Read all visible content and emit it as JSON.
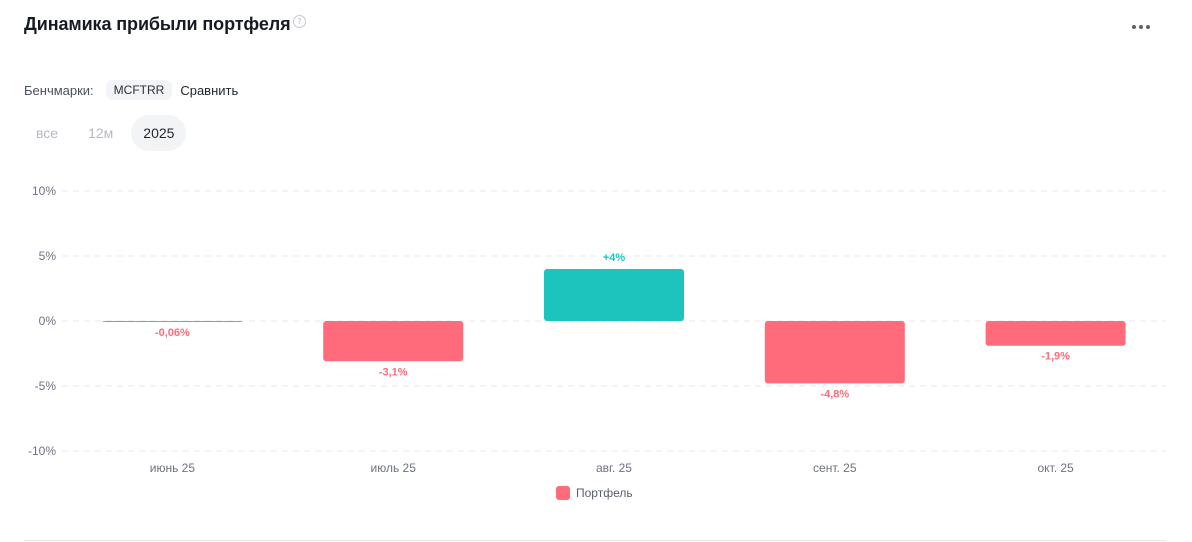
{
  "header": {
    "title": "Динамика прибыли портфеля",
    "help_icon": "question-circle-icon",
    "more_icon": "more-horizontal-icon"
  },
  "benchmarks": {
    "label": "Бенчмарки:",
    "chip": "MCFTRR",
    "compare": "Сравнить"
  },
  "period_tabs": [
    {
      "label": "все",
      "active": false
    },
    {
      "label": "12м",
      "active": false
    },
    {
      "label": "2025",
      "active": true
    }
  ],
  "colors": {
    "positive": "#1dc4bd",
    "negative": "#ff6b7a",
    "grid": "#e6e8ec",
    "axis_text": "#6c7280"
  },
  "chart_data": {
    "type": "bar",
    "categories": [
      "июнь 25",
      "июль 25",
      "авг. 25",
      "сент. 25",
      "окт. 25"
    ],
    "series": [
      {
        "name": "Портфель",
        "values": [
          -0.06,
          -3.1,
          4.0,
          -4.8,
          -1.9
        ],
        "labels": [
          "-0,06%",
          "-3,1%",
          "+4%",
          "-4,8%",
          "-1,9%"
        ]
      }
    ],
    "ylim": [
      -10,
      10
    ],
    "yticks": [
      10,
      5,
      0,
      -5,
      -10
    ],
    "ytick_labels": [
      "10%",
      "5%",
      "0%",
      "-5%",
      "-10%"
    ],
    "grid": true,
    "legend": "bottom-center"
  }
}
